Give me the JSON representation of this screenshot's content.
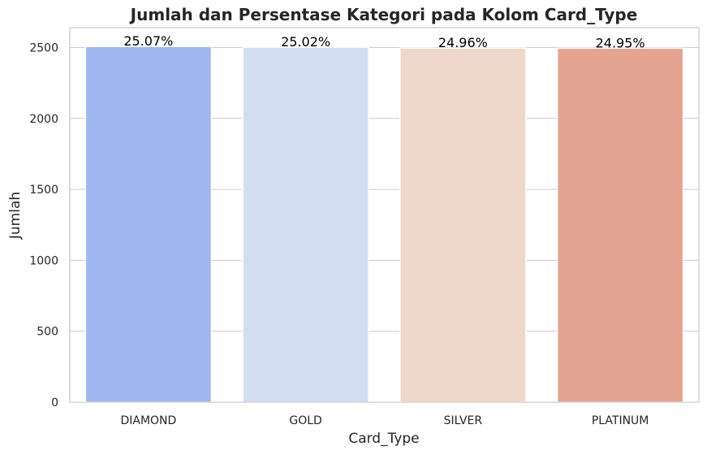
{
  "chart_data": {
    "type": "bar",
    "title": "Jumlah dan Persentase Kategori pada Kolom Card_Type",
    "xlabel": "Card_Type",
    "ylabel": "Jumlah",
    "categories": [
      "DIAMOND",
      "GOLD",
      "SILVER",
      "PLATINUM"
    ],
    "values": [
      2507,
      2502,
      2496,
      2495
    ],
    "percent_labels": [
      "25.07%",
      "25.02%",
      "24.96%",
      "24.95%"
    ],
    "colors": [
      "#a0b6f0",
      "#d2ddf2",
      "#efd7cb",
      "#e3a390"
    ],
    "ylim": [
      0,
      2640
    ],
    "yticks": [
      0,
      500,
      1000,
      1500,
      2000,
      2500
    ],
    "grid": "horizontal",
    "legend": "none"
  }
}
